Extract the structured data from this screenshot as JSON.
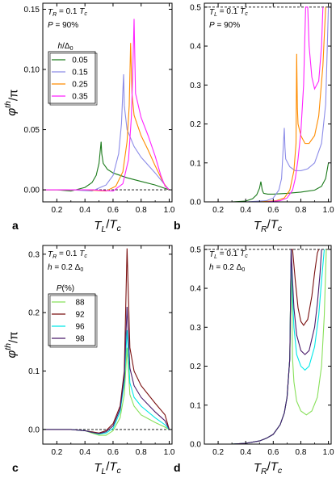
{
  "chart_data": [
    {
      "panel": "a",
      "type": "line",
      "xlabel": "T_L/T_c",
      "ylabel": "φ^th/π",
      "xlim": [
        0.1,
        1.02
      ],
      "ylim": [
        -0.01,
        0.155
      ],
      "xticks": [
        "0.2",
        "0.4",
        "0.6",
        "0.8",
        "1.0"
      ],
      "yticks": [
        "0.00",
        "0.05",
        "0.10",
        "0.15"
      ],
      "annotations": [
        "T_R = 0.1 T_c",
        "P = 90%"
      ],
      "legend_title": "h/Δ_0",
      "legend_position": "upper-left",
      "series": [
        {
          "name": "0.05",
          "color": "#1a7a1a",
          "x": [
            0.1,
            0.2,
            0.3,
            0.4,
            0.45,
            0.48,
            0.5,
            0.515,
            0.52,
            0.53,
            0.56,
            0.6,
            0.7,
            0.8,
            0.9,
            1.0
          ],
          "y": [
            0,
            0,
            -0.001,
            0.002,
            0.006,
            0.012,
            0.022,
            0.04,
            0.03,
            0.022,
            0.017,
            0.014,
            0.01,
            0.007,
            0.004,
            0
          ]
        },
        {
          "name": "0.15",
          "color": "#8c8ce8",
          "x": [
            0.1,
            0.3,
            0.45,
            0.55,
            0.6,
            0.64,
            0.66,
            0.675,
            0.68,
            0.7,
            0.75,
            0.8,
            0.9,
            0.97,
            1.0
          ],
          "y": [
            0,
            0,
            -0.001,
            0.004,
            0.012,
            0.03,
            0.055,
            0.096,
            0.07,
            0.05,
            0.036,
            0.027,
            0.014,
            0.004,
            0
          ]
        },
        {
          "name": "0.25",
          "color": "#ff8c00",
          "x": [
            0.1,
            0.4,
            0.55,
            0.62,
            0.67,
            0.7,
            0.715,
            0.725,
            0.735,
            0.75,
            0.8,
            0.85,
            0.9,
            0.95,
            0.98,
            1.0
          ],
          "y": [
            0,
            0,
            -0.001,
            0.003,
            0.015,
            0.04,
            0.07,
            0.122,
            0.08,
            0.062,
            0.045,
            0.033,
            0.02,
            0.008,
            0.002,
            0
          ]
        },
        {
          "name": "0.35",
          "color": "#ff22ff",
          "x": [
            0.1,
            0.45,
            0.6,
            0.67,
            0.71,
            0.73,
            0.74,
            0.75,
            0.76,
            0.8,
            0.85,
            0.9,
            0.94,
            0.97,
            1.0
          ],
          "y": [
            0,
            0,
            -0.001,
            0.005,
            0.025,
            0.06,
            0.095,
            0.142,
            0.08,
            0.06,
            0.045,
            0.028,
            0.012,
            0.003,
            0
          ]
        }
      ]
    },
    {
      "panel": "b",
      "type": "line",
      "xlabel": "T_R/T_c",
      "ylabel": "",
      "xlim": [
        0.1,
        1.02
      ],
      "ylim": [
        0,
        0.51
      ],
      "xticks": [
        "0.2",
        "0.4",
        "0.6",
        "0.8",
        "1.0"
      ],
      "yticks": [
        "0.0",
        "0.1",
        "0.2",
        "0.3",
        "0.4",
        "0.5"
      ],
      "annotations": [
        "T_L = 0.1 T_c",
        "P = 90%"
      ],
      "series": [
        {
          "name": "0.05",
          "color": "#1a7a1a",
          "x": [
            0.1,
            0.3,
            0.4,
            0.45,
            0.48,
            0.5,
            0.51,
            0.52,
            0.53,
            0.56,
            0.6,
            0.7,
            0.8,
            0.9,
            0.95,
            0.98,
            1.0
          ],
          "y": [
            0,
            0,
            0.002,
            0.008,
            0.018,
            0.035,
            0.052,
            0.03,
            0.022,
            0.02,
            0.02,
            0.022,
            0.025,
            0.03,
            0.04,
            0.06,
            0.1
          ]
        },
        {
          "name": "0.15",
          "color": "#8c8ce8",
          "x": [
            0.1,
            0.4,
            0.55,
            0.6,
            0.64,
            0.66,
            0.68,
            0.685,
            0.69,
            0.72,
            0.76,
            0.8,
            0.85,
            0.9,
            0.95,
            0.98,
            1.0
          ],
          "y": [
            0,
            0,
            0.003,
            0.01,
            0.03,
            0.06,
            0.19,
            0.14,
            0.11,
            0.09,
            0.08,
            0.08,
            0.085,
            0.1,
            0.15,
            0.25,
            0.5
          ]
        },
        {
          "name": "0.25",
          "color": "#ff8c00",
          "x": [
            0.1,
            0.5,
            0.62,
            0.68,
            0.72,
            0.75,
            0.765,
            0.77,
            0.775,
            0.78,
            0.8,
            0.83,
            0.86,
            0.9,
            0.93,
            0.96,
            0.98
          ],
          "y": [
            0,
            0,
            0.003,
            0.01,
            0.03,
            0.08,
            0.15,
            0.38,
            0.24,
            0.2,
            0.17,
            0.15,
            0.15,
            0.17,
            0.22,
            0.35,
            0.5
          ]
        },
        {
          "name": "0.35",
          "color": "#ff22ff",
          "x": [
            0.1,
            0.55,
            0.65,
            0.7,
            0.74,
            0.76,
            0.78,
            0.8,
            0.82,
            0.835,
            0.85,
            0.86,
            0.88,
            0.9,
            0.93,
            0.95,
            0.96
          ],
          "y": [
            0,
            0,
            0.003,
            0.01,
            0.03,
            0.06,
            0.11,
            0.18,
            0.3,
            0.5,
            0.5,
            0.4,
            0.32,
            0.29,
            0.31,
            0.4,
            0.5
          ]
        }
      ]
    },
    {
      "panel": "c",
      "type": "line",
      "xlabel": "T_L/T_c",
      "ylabel": "φ^th/π",
      "xlim": [
        0.1,
        1.02
      ],
      "ylim": [
        -0.025,
        0.315
      ],
      "xticks": [
        "0.2",
        "0.4",
        "0.6",
        "0.8",
        "1.0"
      ],
      "yticks": [
        "0.0",
        "0.1",
        "0.2",
        "0.3"
      ],
      "annotations": [
        "T_R = 0.1 T_c",
        "h = 0.2 Δ_0"
      ],
      "legend_title": "P(%)",
      "legend_position": "upper-left",
      "series": [
        {
          "name": "88",
          "color": "#88e05a",
          "x": [
            0.1,
            0.3,
            0.4,
            0.45,
            0.5,
            0.55,
            0.6,
            0.65,
            0.68,
            0.7,
            0.72,
            0.75,
            0.8,
            0.9,
            0.97,
            1.0
          ],
          "y": [
            0,
            0,
            -0.002,
            -0.006,
            -0.01,
            -0.01,
            -0.002,
            0.02,
            0.06,
            0.14,
            0.06,
            0.04,
            0.025,
            0.012,
            0.004,
            0
          ]
        },
        {
          "name": "92",
          "color": "#7a1010",
          "x": [
            0.1,
            0.3,
            0.4,
            0.45,
            0.5,
            0.55,
            0.6,
            0.65,
            0.68,
            0.7,
            0.72,
            0.75,
            0.8,
            0.9,
            0.97,
            1.0
          ],
          "y": [
            0,
            0,
            -0.002,
            -0.004,
            -0.006,
            -0.002,
            0.01,
            0.04,
            0.1,
            0.31,
            0.14,
            0.1,
            0.075,
            0.045,
            0.025,
            0
          ]
        },
        {
          "name": "96",
          "color": "#00e8e8",
          "x": [
            0.1,
            0.3,
            0.4,
            0.45,
            0.5,
            0.55,
            0.6,
            0.65,
            0.68,
            0.7,
            0.72,
            0.75,
            0.8,
            0.9,
            0.97,
            1.0
          ],
          "y": [
            0,
            0,
            -0.002,
            -0.005,
            -0.008,
            -0.006,
            0.002,
            0.03,
            0.08,
            0.17,
            0.08,
            0.055,
            0.04,
            0.02,
            0.008,
            0
          ]
        },
        {
          "name": "98",
          "color": "#4a1a6a",
          "x": [
            0.1,
            0.3,
            0.4,
            0.45,
            0.5,
            0.55,
            0.6,
            0.65,
            0.68,
            0.7,
            0.72,
            0.75,
            0.8,
            0.9,
            0.97,
            1.0
          ],
          "y": [
            0,
            0,
            -0.002,
            -0.005,
            -0.007,
            -0.004,
            0.006,
            0.035,
            0.09,
            0.21,
            0.105,
            0.075,
            0.055,
            0.03,
            0.015,
            0
          ]
        }
      ]
    },
    {
      "panel": "d",
      "type": "line",
      "xlabel": "T_R/T_c",
      "ylabel": "",
      "xlim": [
        0.1,
        1.02
      ],
      "ylim": [
        0,
        0.51
      ],
      "xticks": [
        "0.2",
        "0.4",
        "0.6",
        "0.8",
        "1.0"
      ],
      "yticks": [
        "0.0",
        "0.1",
        "0.2",
        "0.3",
        "0.4",
        "0.5"
      ],
      "annotations": [
        "T_L = 0.1 T_c",
        "h = 0.2 Δ_0"
      ],
      "series": [
        {
          "name": "88",
          "color": "#88e05a",
          "x": [
            0.1,
            0.3,
            0.4,
            0.5,
            0.55,
            0.6,
            0.65,
            0.68,
            0.7,
            0.72,
            0.73,
            0.74,
            0.75,
            0.77,
            0.8,
            0.84,
            0.88,
            0.92,
            0.95,
            0.97,
            0.985
          ],
          "y": [
            0,
            0,
            0.002,
            0.008,
            0.015,
            0.025,
            0.05,
            0.08,
            0.12,
            0.22,
            0.5,
            0.22,
            0.16,
            0.11,
            0.085,
            0.075,
            0.085,
            0.12,
            0.2,
            0.33,
            0.5
          ]
        },
        {
          "name": "92",
          "color": "#7a1010",
          "x": [
            0.1,
            0.3,
            0.4,
            0.5,
            0.55,
            0.6,
            0.65,
            0.68,
            0.7,
            0.72,
            0.73,
            0.74,
            0.76,
            0.78,
            0.8,
            0.82,
            0.85,
            0.88,
            0.9,
            0.92,
            0.93
          ],
          "y": [
            0,
            0,
            0.002,
            0.008,
            0.015,
            0.025,
            0.05,
            0.08,
            0.12,
            0.22,
            0.5,
            0.5,
            0.42,
            0.35,
            0.315,
            0.305,
            0.32,
            0.38,
            0.44,
            0.49,
            0.5
          ]
        },
        {
          "name": "96",
          "color": "#00e8e8",
          "x": [
            0.1,
            0.3,
            0.4,
            0.5,
            0.55,
            0.6,
            0.65,
            0.68,
            0.7,
            0.72,
            0.73,
            0.74,
            0.75,
            0.77,
            0.8,
            0.83,
            0.86,
            0.9,
            0.93,
            0.95,
            0.97
          ],
          "y": [
            0,
            0,
            0.002,
            0.008,
            0.015,
            0.025,
            0.05,
            0.08,
            0.12,
            0.22,
            0.5,
            0.38,
            0.3,
            0.23,
            0.2,
            0.19,
            0.2,
            0.25,
            0.33,
            0.42,
            0.5
          ]
        },
        {
          "name": "98",
          "color": "#4a1a6a",
          "x": [
            0.1,
            0.3,
            0.4,
            0.5,
            0.55,
            0.6,
            0.65,
            0.68,
            0.7,
            0.72,
            0.73,
            0.74,
            0.75,
            0.77,
            0.8,
            0.83,
            0.86,
            0.9,
            0.92,
            0.94,
            0.95
          ],
          "y": [
            0,
            0,
            0.002,
            0.008,
            0.015,
            0.025,
            0.05,
            0.08,
            0.12,
            0.22,
            0.5,
            0.42,
            0.35,
            0.28,
            0.24,
            0.23,
            0.24,
            0.3,
            0.36,
            0.44,
            0.5
          ]
        }
      ]
    }
  ]
}
